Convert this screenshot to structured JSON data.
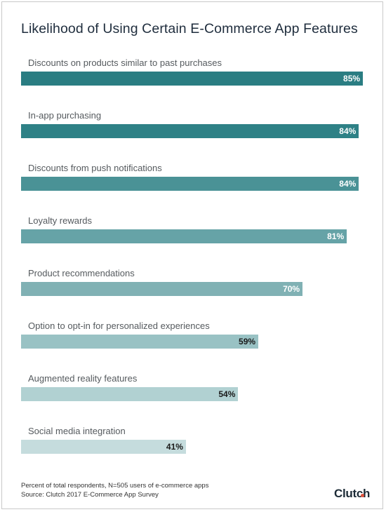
{
  "chart_data": {
    "type": "bar",
    "orientation": "horizontal",
    "title": "Likelihood of Using Certain E-Commerce App Features",
    "categories": [
      "Discounts on products similar to past purchases",
      "In-app purchasing",
      "Discounts from push notifications",
      "Loyalty rewards",
      "Product recommendations",
      "Option to opt-in for personalized experiences",
      "Augmented reality features",
      "Social media integration"
    ],
    "values": [
      85,
      84,
      84,
      81,
      70,
      59,
      54,
      41
    ],
    "value_labels": [
      "85%",
      "84%",
      "84%",
      "81%",
      "70%",
      "59%",
      "54%",
      "41%"
    ],
    "bar_colors": [
      "#2a7d82",
      "#2e8186",
      "#4a9296",
      "#66a3a7",
      "#80b1b4",
      "#99c2c4",
      "#b1d1d2",
      "#c5dcdd"
    ],
    "label_colors": [
      "#ffffff",
      "#ffffff",
      "#ffffff",
      "#ffffff",
      "#ffffff",
      "#1a1a1a",
      "#1a1a1a",
      "#1a1a1a"
    ],
    "xlim": [
      0,
      100
    ],
    "grid": false,
    "legend": false
  },
  "footnote": {
    "line1": "Percent of total respondents, N=505 users of e-commerce apps",
    "line2": "Source: Clutch 2017 E-Commerce App Survey"
  },
  "logo": {
    "text": "Clutch",
    "dot_color": "#e0533d"
  }
}
